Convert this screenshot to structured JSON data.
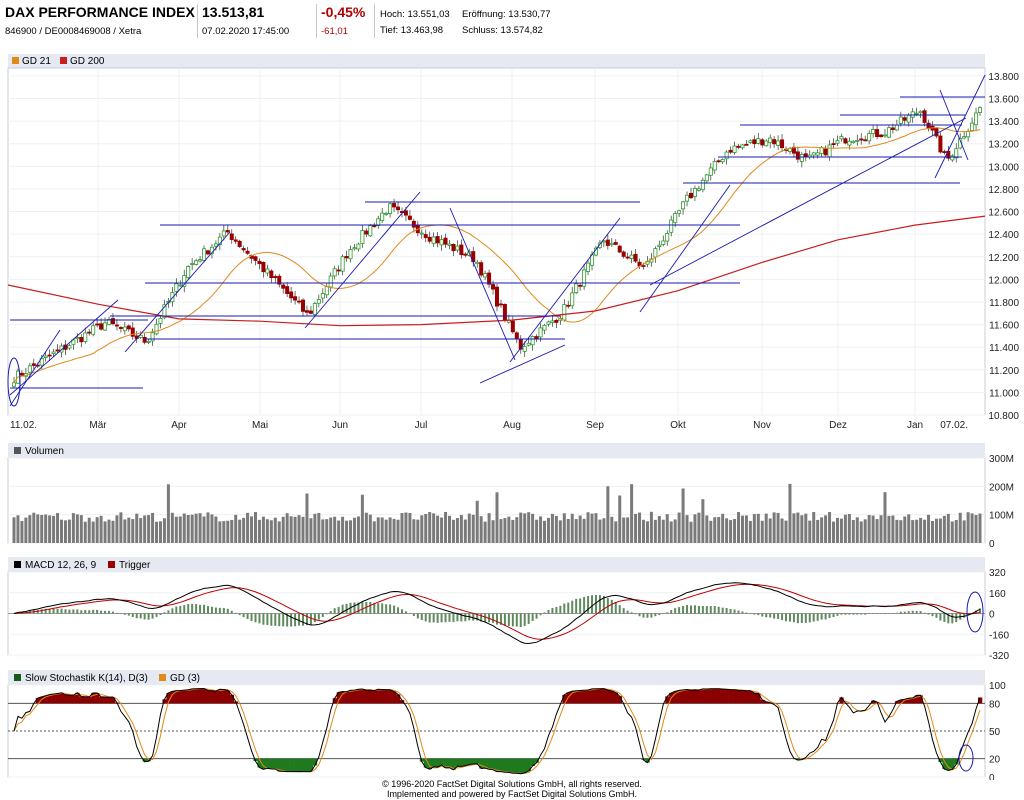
{
  "header": {
    "title": "DAX PERFORMANCE INDEX",
    "subtitle": "846900 / DE0008469008 / Xetra",
    "price": "13.513,81",
    "datetime": "07.02.2020 17:45:00",
    "change_pct": "-0,45%",
    "change_abs": "-61,01",
    "hoch": "Hoch: 13.551,03",
    "tief": "Tief: 13.463,98",
    "eroeffnung": "Eröffnung: 13.530,77",
    "schluss": "Schluss: 13.574,82"
  },
  "colors": {
    "panel_bg": "#e5e9f1",
    "up": "#2e9a2e",
    "down": "#9b0000",
    "trend": "#1a1ab0",
    "gd21": "#e08a1a",
    "gd200": "#c81e1e",
    "volume": "#7a7a7a"
  },
  "footer": {
    "line1": "© 1996-2020 FactSet Digital Solutions GmbH, all rights reserved.",
    "line2": "Implemented and powered by FactSet Digital Solutions GmbH."
  },
  "chart_data": [
    {
      "type": "candlestick",
      "legend": [
        "GD 21",
        "GD 200"
      ],
      "x_labels": [
        "11.02.",
        "Mär",
        "Apr",
        "Mai",
        "Jun",
        "Jul",
        "Aug",
        "Sep",
        "Okt",
        "Nov",
        "Dez",
        "Jan",
        "07.02."
      ],
      "y_ticks": [
        10800,
        11000,
        11200,
        11400,
        11600,
        11800,
        12000,
        12200,
        12400,
        12600,
        12800,
        13000,
        13200,
        13400,
        13600,
        13800
      ],
      "y_tick_labels": [
        "10.800",
        "11.000",
        "11.200",
        "11.400",
        "11.600",
        "11.800",
        "12.000",
        "12.200",
        "12.400",
        "12.600",
        "12.800",
        "13.000",
        "13.200",
        "13.400",
        "13.600",
        "13.800"
      ],
      "ylim": [
        10800,
        13870
      ],
      "close_points": [
        [
          "11.02.",
          11130
        ],
        [
          "Mär",
          11620
        ],
        [
          "Mär",
          11450
        ],
        [
          "Apr",
          12100
        ],
        [
          "Apr",
          12420
        ],
        [
          "Mai",
          12050
        ],
        [
          "Mai",
          11680
        ],
        [
          "Jun",
          12250
        ],
        [
          "Jun",
          12640
        ],
        [
          "Jul",
          12380
        ],
        [
          "Jul",
          12180
        ],
        [
          "Aug",
          11400
        ],
        [
          "Aug",
          11700
        ],
        [
          "Sep",
          12350
        ],
        [
          "Sep",
          12100
        ],
        [
          "Okt",
          12700
        ],
        [
          "Okt",
          13150
        ],
        [
          "Nov",
          13250
        ],
        [
          "Nov",
          13050
        ],
        [
          "Dez",
          13250
        ],
        [
          "Dez",
          13300
        ],
        [
          "Jan",
          13500
        ],
        [
          "Jan",
          13050
        ],
        [
          "07.02.",
          13514
        ]
      ],
      "gd200_points": [
        [
          "11.02.",
          11950
        ],
        [
          "Mär",
          11780
        ],
        [
          "Apr",
          11650
        ],
        [
          "Mai",
          11630
        ],
        [
          "Jun",
          11590
        ],
        [
          "Jul",
          11600
        ],
        [
          "Aug",
          11640
        ],
        [
          "Sep",
          11720
        ],
        [
          "Okt",
          11900
        ],
        [
          "Nov",
          12150
        ],
        [
          "Dez",
          12350
        ],
        [
          "Jan",
          12480
        ],
        [
          "07.02.",
          12560
        ]
      ]
    },
    {
      "type": "bar",
      "legend": [
        "Volumen"
      ],
      "y_tick_labels": [
        "0",
        "100M",
        "200M",
        "300M"
      ],
      "ylim": [
        0,
        300
      ]
    },
    {
      "type": "line",
      "legend": [
        "MACD 12, 26, 9",
        "Trigger"
      ],
      "y_tick_labels": [
        "-320",
        "-160",
        "0",
        "160",
        "320"
      ],
      "ylim": [
        -320,
        320
      ]
    },
    {
      "type": "line",
      "legend": [
        "Slow Stochastik K(14), D(3)",
        "GD (3)"
      ],
      "y_tick_labels": [
        "0",
        "20",
        "50",
        "80",
        "100"
      ],
      "ylim": [
        0,
        100
      ]
    }
  ]
}
